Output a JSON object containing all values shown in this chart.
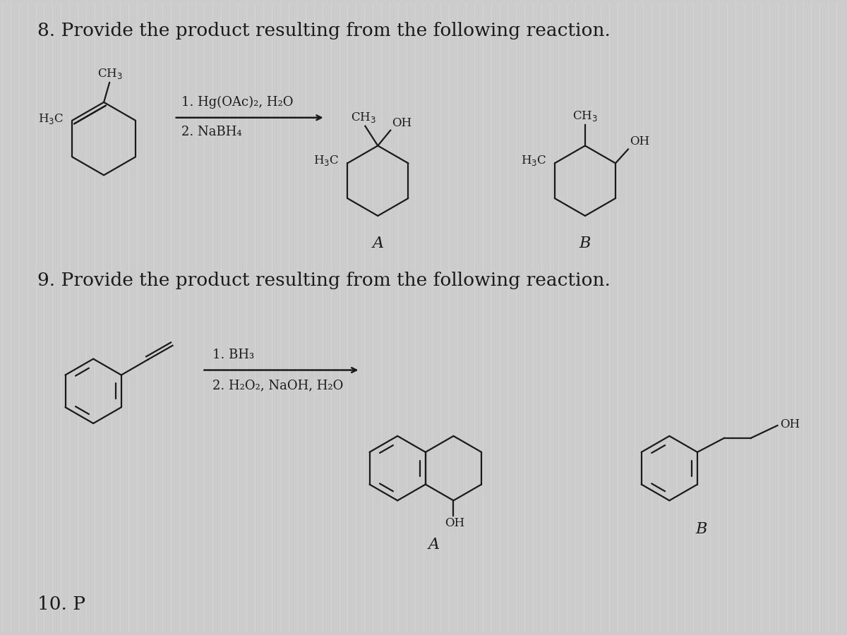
{
  "bg_color": "#cccccc",
  "title_8": "8. Provide the product resulting from the following reaction.",
  "title_9": "9. Provide the product resulting from the following reaction.",
  "reagents_8_1": "1. Hg(OAc)₂, H₂O",
  "reagents_8_2": "2. NaBH₄",
  "reagents_9_1": "1. BH₃",
  "reagents_9_2": "2. H₂O₂, NaOH, H₂O",
  "label_A": "A",
  "label_B": "B",
  "text_color": "#1a1a1a",
  "line_color": "#1a1a1a",
  "font_size_title": 19,
  "font_size_label": 13,
  "font_size_chem": 12,
  "font_size_sub": 11
}
